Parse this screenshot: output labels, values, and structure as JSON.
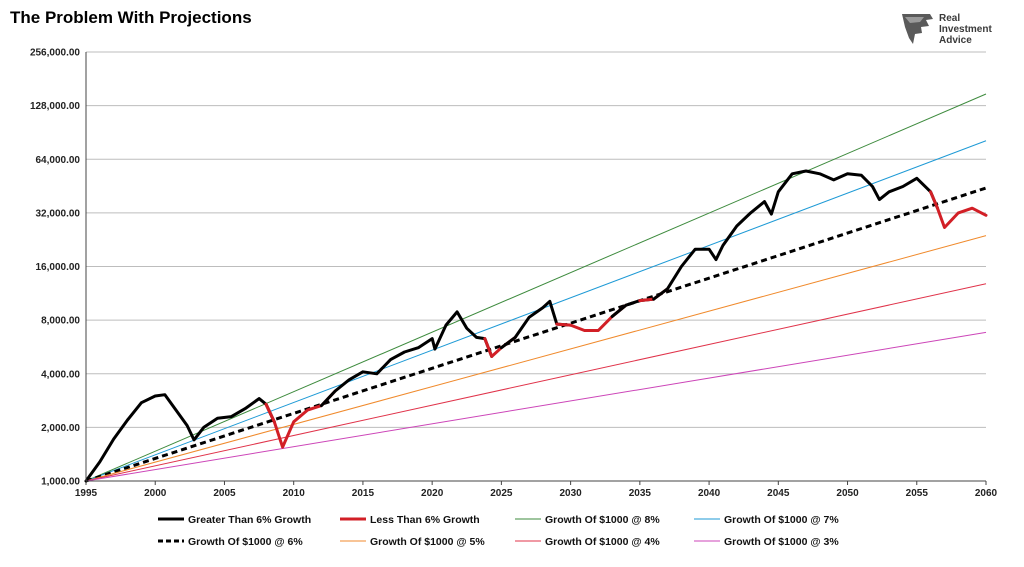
{
  "chart_data": {
    "type": "line",
    "title": "The Problem With Projections",
    "brand": {
      "line1": "Real",
      "line2": "Investment",
      "line3": "Advice"
    },
    "x_axis": {
      "min": 1995,
      "max": 2060,
      "ticks": [
        "1995",
        "2000",
        "2005",
        "2010",
        "2015",
        "2020",
        "2025",
        "2030",
        "2035",
        "2040",
        "2045",
        "2050",
        "2055",
        "2060"
      ]
    },
    "y_axis": {
      "scale": "log2",
      "min": 1000,
      "max": 256000,
      "ticks": [
        {
          "value": 1000,
          "label": "1,000.00"
        },
        {
          "value": 2000,
          "label": "2,000.00"
        },
        {
          "value": 4000,
          "label": "4,000.00"
        },
        {
          "value": 8000,
          "label": "8,000.00"
        },
        {
          "value": 16000,
          "label": "16,000.00"
        },
        {
          "value": 32000,
          "label": "32,000.00"
        },
        {
          "value": 64000,
          "label": "64,000.00"
        },
        {
          "value": 128000,
          "label": "128,000.00"
        },
        {
          "value": 256000,
          "label": "256,000.00"
        }
      ],
      "grid": true
    },
    "growth_series": [
      {
        "name": "Growth Of $1000 @ 8%",
        "rate": 0.08,
        "color": "#3e8b3e"
      },
      {
        "name": "Growth Of $1000 @ 7%",
        "rate": 0.07,
        "color": "#1e9ad6"
      },
      {
        "name": "Growth Of $1000 @ 6%",
        "rate": 0.06,
        "color": "#000000",
        "dashed": true
      },
      {
        "name": "Growth Of $1000 @ 5%",
        "rate": 0.05,
        "color": "#f08a2c"
      },
      {
        "name": "Growth Of $1000 @ 4%",
        "rate": 0.04,
        "color": "#e0334a"
      },
      {
        "name": "Growth Of $1000 @ 3%",
        "rate": 0.03,
        "color": "#cc45b8"
      }
    ],
    "market_series": {
      "above_name": "Greater Than 6% Growth",
      "below_name": "Less Than 6% Growth",
      "above_color": "#000000",
      "below_color": "#d21f26",
      "points": [
        [
          1995.0,
          1000
        ],
        [
          1996.0,
          1280
        ],
        [
          1997.0,
          1720
        ],
        [
          1998.0,
          2200
        ],
        [
          1999.0,
          2750
        ],
        [
          2000.0,
          3000
        ],
        [
          2000.7,
          3050
        ],
        [
          2001.5,
          2500
        ],
        [
          2002.3,
          2050
        ],
        [
          2002.8,
          1700
        ],
        [
          2003.5,
          2000
        ],
        [
          2004.5,
          2250
        ],
        [
          2005.5,
          2300
        ],
        [
          2006.5,
          2550
        ],
        [
          2007.5,
          2900
        ],
        [
          2008.0,
          2700
        ],
        [
          2008.6,
          2150
        ],
        [
          2009.2,
          1550
        ],
        [
          2010.0,
          2150
        ],
        [
          2011.0,
          2500
        ],
        [
          2012.0,
          2650
        ],
        [
          2013.0,
          3200
        ],
        [
          2014.0,
          3700
        ],
        [
          2015.0,
          4100
        ],
        [
          2016.0,
          4000
        ],
        [
          2017.0,
          4800
        ],
        [
          2018.0,
          5300
        ],
        [
          2019.0,
          5600
        ],
        [
          2020.0,
          6300
        ],
        [
          2020.2,
          5500
        ],
        [
          2021.0,
          7500
        ],
        [
          2021.8,
          8900
        ],
        [
          2022.5,
          7200
        ],
        [
          2023.2,
          6400
        ],
        [
          2023.8,
          6300
        ],
        [
          2024.3,
          5000
        ],
        [
          2025.0,
          5600
        ],
        [
          2026.0,
          6400
        ],
        [
          2027.0,
          8300
        ],
        [
          2028.0,
          9400
        ],
        [
          2028.5,
          10200
        ],
        [
          2029.0,
          7600
        ],
        [
          2030.0,
          7500
        ],
        [
          2031.0,
          7000
        ],
        [
          2032.0,
          7000
        ],
        [
          2033.0,
          8400
        ],
        [
          2034.0,
          9700
        ],
        [
          2035.0,
          10300
        ],
        [
          2036.0,
          10500
        ],
        [
          2037.0,
          12000
        ],
        [
          2038.0,
          16000
        ],
        [
          2039.0,
          20000
        ],
        [
          2040.0,
          20000
        ],
        [
          2040.5,
          17500
        ],
        [
          2041.0,
          21000
        ],
        [
          2042.0,
          27000
        ],
        [
          2043.0,
          32000
        ],
        [
          2044.0,
          37000
        ],
        [
          2044.5,
          31500
        ],
        [
          2045.0,
          42000
        ],
        [
          2046.0,
          53000
        ],
        [
          2047.0,
          55000
        ],
        [
          2048.0,
          53000
        ],
        [
          2049.0,
          49000
        ],
        [
          2050.0,
          53000
        ],
        [
          2051.0,
          52000
        ],
        [
          2051.8,
          45000
        ],
        [
          2052.3,
          38000
        ],
        [
          2053.0,
          42000
        ],
        [
          2054.0,
          45000
        ],
        [
          2055.0,
          50000
        ],
        [
          2056.0,
          42000
        ],
        [
          2056.5,
          34000
        ],
        [
          2057.0,
          26500
        ],
        [
          2058.0,
          32000
        ],
        [
          2059.0,
          34000
        ],
        [
          2060.0,
          31000
        ]
      ]
    },
    "legend": {
      "placement": "bottom",
      "entries": [
        {
          "label": "Greater Than 6% Growth",
          "color": "#000000",
          "style": "thick"
        },
        {
          "label": "Less Than 6% Growth",
          "color": "#d21f26",
          "style": "thick"
        },
        {
          "label": "Growth Of $1000 @ 8%",
          "color": "#3e8b3e",
          "style": "thin"
        },
        {
          "label": "Growth Of $1000 @ 7%",
          "color": "#1e9ad6",
          "style": "thin"
        },
        {
          "label": "Growth Of $1000 @ 6%",
          "color": "#000000",
          "style": "dashed"
        },
        {
          "label": "Growth Of $1000 @ 5%",
          "color": "#f08a2c",
          "style": "thin"
        },
        {
          "label": "Growth Of $1000 @ 4%",
          "color": "#e0334a",
          "style": "thin"
        },
        {
          "label": "Growth Of $1000 @ 3%",
          "color": "#cc45b8",
          "style": "thin"
        }
      ]
    }
  }
}
